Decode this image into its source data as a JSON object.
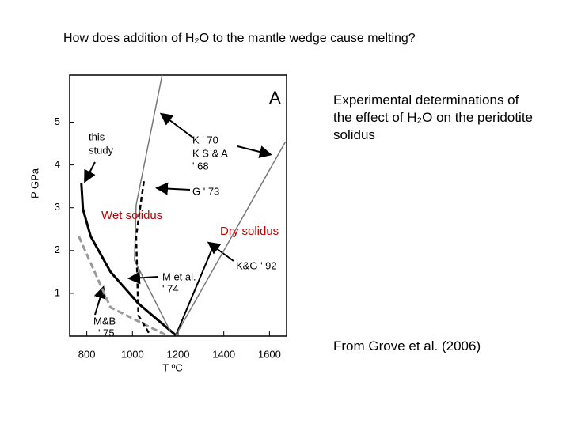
{
  "slide": {
    "title": "How does addition of H₂O to the mantle wedge cause melting?",
    "side_text": "Experimental determinations of the effect of H₂O on the peridotite solidus",
    "source": "From Grove et al. (2006)"
  },
  "chart_data": {
    "type": "line",
    "xlabel": "T ºC",
    "ylabel": "P GPa",
    "xlim": [
      725,
      1675
    ],
    "ylim": [
      0,
      6.1
    ],
    "xticks": [
      800,
      1000,
      1200,
      1400,
      1600
    ],
    "yticks": [
      1,
      2,
      3,
      4,
      5
    ],
    "annotations": [
      "A",
      "this",
      "study",
      "K ' 70",
      "K S & A",
      "' 68",
      "G ' 73",
      "M et al.",
      "' 74",
      "K&G ' 92",
      "M&B",
      "' 75",
      "Wet solidus",
      "Dry solidus"
    ],
    "series": [
      {
        "color": "#000000",
        "x": [
          776,
          783,
          817,
          904,
          1026,
          1190
        ],
        "values": [
          3.58,
          2.97,
          2.33,
          1.5,
          0.76,
          0.02
        ]
      },
      {
        "color": "#000000",
        "x": [
          1190,
          1357
        ],
        "values": [
          0.02,
          2.14
        ]
      },
      {
        "color": "#777777",
        "x": [
          1190,
          1670
        ],
        "values": [
          0.02,
          4.54
        ]
      },
      {
        "color": "#777777",
        "x": [
          1165,
          1009,
          1016,
          1130
        ],
        "values": [
          0.12,
          1.77,
          3.06,
          6.1
        ]
      },
      {
        "color": "#999999",
        "x": [
          765,
          904,
          1148
        ],
        "values": [
          2.33,
          0.67,
          0.02
        ]
      },
      {
        "color": "#000000",
        "x": [
          1050,
          1016,
          1026,
          1078
        ],
        "values": [
          3.62,
          2.33,
          0.48,
          0.02
        ]
      }
    ]
  }
}
